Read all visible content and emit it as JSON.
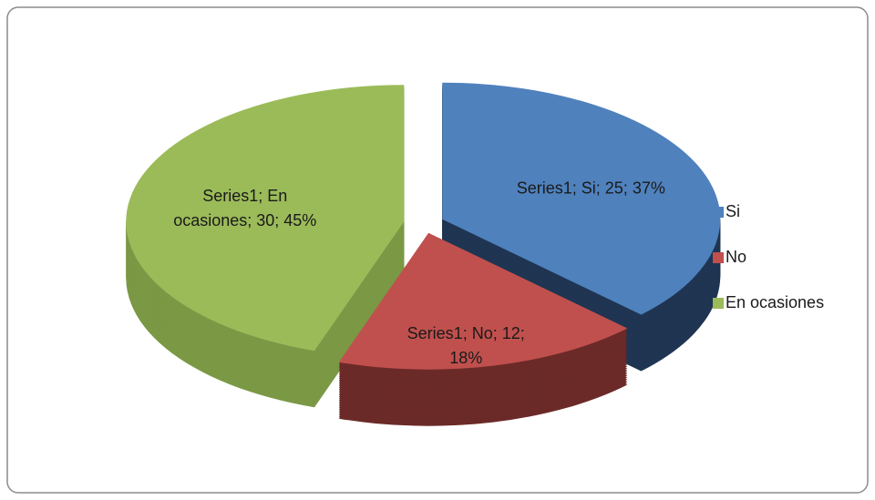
{
  "chart_data": {
    "type": "pie",
    "series_name": "Series1",
    "categories": [
      "Si",
      "No",
      "En ocasiones"
    ],
    "values": [
      25,
      12,
      30
    ],
    "value_labels": [
      "Series1; Si; 25; 37%",
      "Series1; No; 12; 18%",
      "Series1; En ocasiones; 30; 45%"
    ],
    "colors": [
      "#4f81bd",
      "#c0504d",
      "#9bbb59"
    ],
    "side_colors": [
      "#1f3552",
      "#6b2a28",
      "#7b9845"
    ],
    "legend": "right"
  }
}
